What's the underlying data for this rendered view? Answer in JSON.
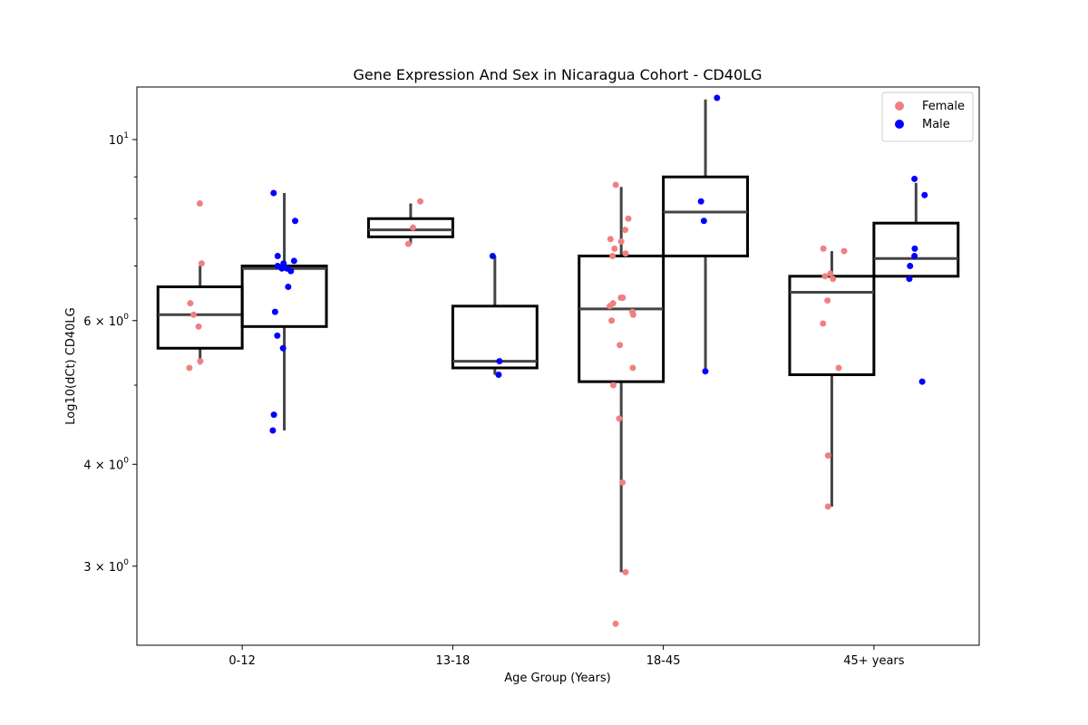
{
  "chart_data": {
    "type": "box",
    "title": "Gene Expression And Sex in Nicaragua Cohort - CD40LG",
    "xlabel": "Age Group (Years)",
    "ylabel": "Log10(dCt) CD40LG",
    "yscale": "log",
    "ylim": [
      2.4,
      11.6
    ],
    "y_ticks": [
      {
        "value": 3,
        "label_base": "3",
        "label_exp": "0"
      },
      {
        "value": 4,
        "label_base": "4",
        "label_exp": "0"
      },
      {
        "value": 6,
        "label_base": "6",
        "label_exp": "0"
      },
      {
        "value": 10,
        "label_base": "10",
        "label_exp": "1"
      }
    ],
    "y_minor_ticks": [
      5,
      7,
      8,
      9
    ],
    "categories": [
      "0-12",
      "13-18",
      "18-45",
      "45+ years"
    ],
    "legend": {
      "placement": "top-right",
      "entries": [
        {
          "name": "Female",
          "color": "#f08080"
        },
        {
          "name": "Male",
          "color": "#0000ff"
        }
      ]
    },
    "series": [
      {
        "name": "Female",
        "color": "#f08080",
        "boxes": [
          {
            "category": "0-12",
            "whisker_low": 5.3,
            "q1": 5.55,
            "median": 6.1,
            "q3": 6.6,
            "whisker_high": 7.0
          },
          {
            "category": "13-18",
            "whisker_low": 7.45,
            "q1": 7.6,
            "median": 7.75,
            "q3": 8.0,
            "whisker_high": 8.35
          },
          {
            "category": "18-45",
            "whisker_low": 2.95,
            "q1": 5.05,
            "median": 6.2,
            "q3": 7.2,
            "whisker_high": 8.75
          },
          {
            "category": "45+ years",
            "whisker_low": 3.55,
            "q1": 5.15,
            "median": 6.5,
            "q3": 6.8,
            "whisker_high": 7.3
          }
        ],
        "points": [
          {
            "category": "0-12",
            "values": [
              8.35,
              7.05,
              6.3,
              6.1,
              5.9,
              5.35,
              5.25
            ]
          },
          {
            "category": "13-18",
            "values": [
              8.4,
              7.8,
              7.45
            ]
          },
          {
            "category": "18-45",
            "values": [
              8.8,
              8.0,
              7.75,
              7.55,
              7.5,
              7.35,
              7.25,
              7.2,
              6.4,
              6.4,
              6.3,
              6.25,
              6.15,
              6.1,
              6.0,
              5.6,
              5.25,
              5.0,
              4.55,
              3.8,
              2.95,
              2.55
            ]
          },
          {
            "category": "45+ years",
            "values": [
              7.35,
              7.3,
              6.85,
              6.8,
              6.75,
              6.35,
              5.95,
              5.25,
              4.1,
              3.55
            ]
          }
        ]
      },
      {
        "name": "Male",
        "color": "#0000ff",
        "boxes": [
          {
            "category": "0-12",
            "whisker_low": 4.4,
            "q1": 5.9,
            "median": 6.95,
            "q3": 7.0,
            "whisker_high": 8.6
          },
          {
            "category": "13-18",
            "whisker_low": 5.15,
            "q1": 5.25,
            "median": 5.35,
            "q3": 6.25,
            "whisker_high": 7.2
          },
          {
            "category": "18-45",
            "whisker_low": 5.2,
            "q1": 7.2,
            "median": 8.15,
            "q3": 9.0,
            "whisker_high": 11.2
          },
          {
            "category": "45+ years",
            "whisker_low": 6.8,
            "q1": 6.8,
            "median": 7.15,
            "q3": 7.9,
            "whisker_high": 8.85
          }
        ],
        "points": [
          {
            "category": "0-12",
            "values": [
              8.6,
              7.95,
              7.2,
              7.1,
              7.05,
              7.0,
              6.95,
              6.95,
              6.9,
              6.6,
              6.15,
              5.75,
              5.55,
              4.6,
              4.4
            ]
          },
          {
            "category": "13-18",
            "values": [
              7.2,
              5.35,
              5.15
            ]
          },
          {
            "category": "18-45",
            "values": [
              11.25,
              8.4,
              7.95,
              5.2
            ]
          },
          {
            "category": "45+ years",
            "values": [
              8.95,
              8.55,
              7.35,
              7.2,
              7.0,
              6.75,
              5.05
            ]
          }
        ]
      }
    ]
  }
}
